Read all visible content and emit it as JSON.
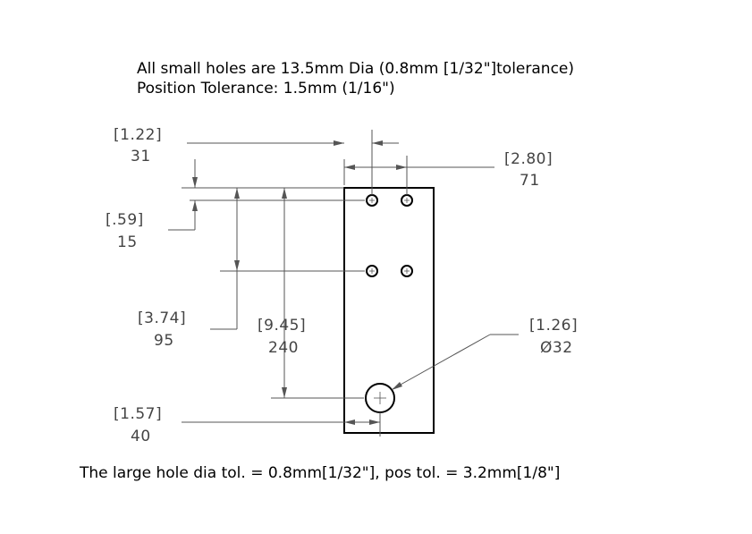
{
  "notes": {
    "line1": "All small holes are 13.5mm Dia (0.8mm [1/32\"]tolerance)",
    "line2": "Position Tolerance: 1.5mm (1/16\")",
    "bottom": "The large hole dia tol. = 0.8mm[1/32\"], pos tol. = 3.2mm[1/8\"]"
  },
  "dimensions": {
    "hole_offset_x": {
      "inch": "[1.22]",
      "mm": "31"
    },
    "hole_spacing_x": {
      "inch": "[2.80]",
      "mm": "71"
    },
    "hole_offset_y": {
      "inch": "[.59]",
      "mm": "15"
    },
    "hole_spacing_y": {
      "inch": "[3.74]",
      "mm": "95"
    },
    "large_hole_y": {
      "inch": "[9.45]",
      "mm": "240"
    },
    "large_hole_dia": {
      "inch": "[1.26]",
      "mm": "Ø32"
    },
    "large_hole_x": {
      "inch": "[1.57]",
      "mm": "40"
    }
  }
}
